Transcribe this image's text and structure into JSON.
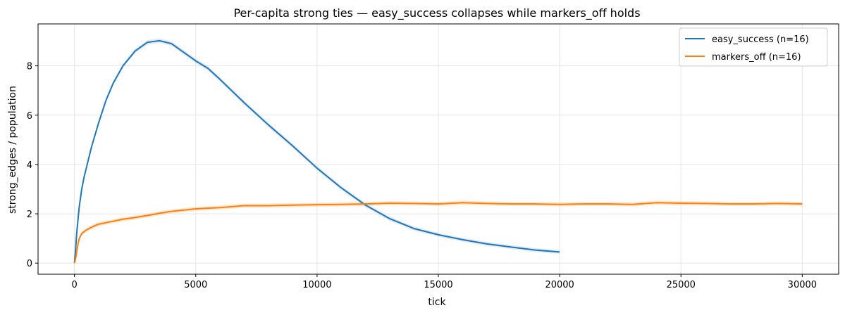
{
  "chart_data": {
    "type": "line",
    "title": "Per-capita strong ties — easy_success collapses while markers_off holds",
    "xlabel": "tick",
    "ylabel": "strong_edges / population",
    "xlim": [
      -1500,
      31500
    ],
    "ylim": [
      -0.45,
      9.7
    ],
    "xticks": [
      0,
      5000,
      10000,
      15000,
      20000,
      25000,
      30000
    ],
    "yticks": [
      0,
      2,
      4,
      6,
      8
    ],
    "grid": true,
    "legend_position": "upper right",
    "series": [
      {
        "name": "easy_success (n=16)",
        "color": "#1f77b4",
        "band_color": "#aec7e8",
        "x": [
          0,
          50,
          100,
          200,
          300,
          400,
          500,
          700,
          1000,
          1300,
          1600,
          2000,
          2500,
          3000,
          3500,
          4000,
          4500,
          5000,
          5500,
          6000,
          7000,
          8000,
          9000,
          10000,
          11000,
          12000,
          13000,
          14000,
          15000,
          16000,
          17000,
          18000,
          19000,
          20000
        ],
        "y": [
          0.0,
          0.6,
          1.3,
          2.3,
          3.0,
          3.5,
          3.9,
          4.7,
          5.7,
          6.6,
          7.3,
          8.0,
          8.6,
          8.95,
          9.02,
          8.9,
          8.55,
          8.2,
          7.9,
          7.45,
          6.5,
          5.6,
          4.75,
          3.85,
          3.05,
          2.35,
          1.8,
          1.4,
          1.15,
          0.95,
          0.78,
          0.65,
          0.53,
          0.45
        ]
      },
      {
        "name": "markers_off (n=16)",
        "color": "#ff7f0e",
        "band_color": "#ffbb78",
        "x": [
          0,
          50,
          100,
          150,
          200,
          300,
          500,
          800,
          1000,
          1500,
          2000,
          2500,
          3000,
          3500,
          4000,
          4500,
          5000,
          6000,
          7000,
          8000,
          9000,
          10000,
          11000,
          12000,
          13000,
          14000,
          15000,
          16000,
          17000,
          18000,
          19000,
          20000,
          21000,
          22000,
          23000,
          24000,
          25000,
          26000,
          27000,
          28000,
          29000,
          30000
        ],
        "y": [
          0.0,
          0.2,
          0.5,
          0.8,
          1.0,
          1.2,
          1.35,
          1.5,
          1.58,
          1.68,
          1.78,
          1.85,
          1.93,
          2.02,
          2.1,
          2.15,
          2.2,
          2.25,
          2.33,
          2.33,
          2.35,
          2.37,
          2.38,
          2.4,
          2.43,
          2.42,
          2.4,
          2.45,
          2.42,
          2.4,
          2.4,
          2.38,
          2.4,
          2.4,
          2.38,
          2.45,
          2.43,
          2.42,
          2.4,
          2.4,
          2.42,
          2.4
        ]
      }
    ]
  }
}
